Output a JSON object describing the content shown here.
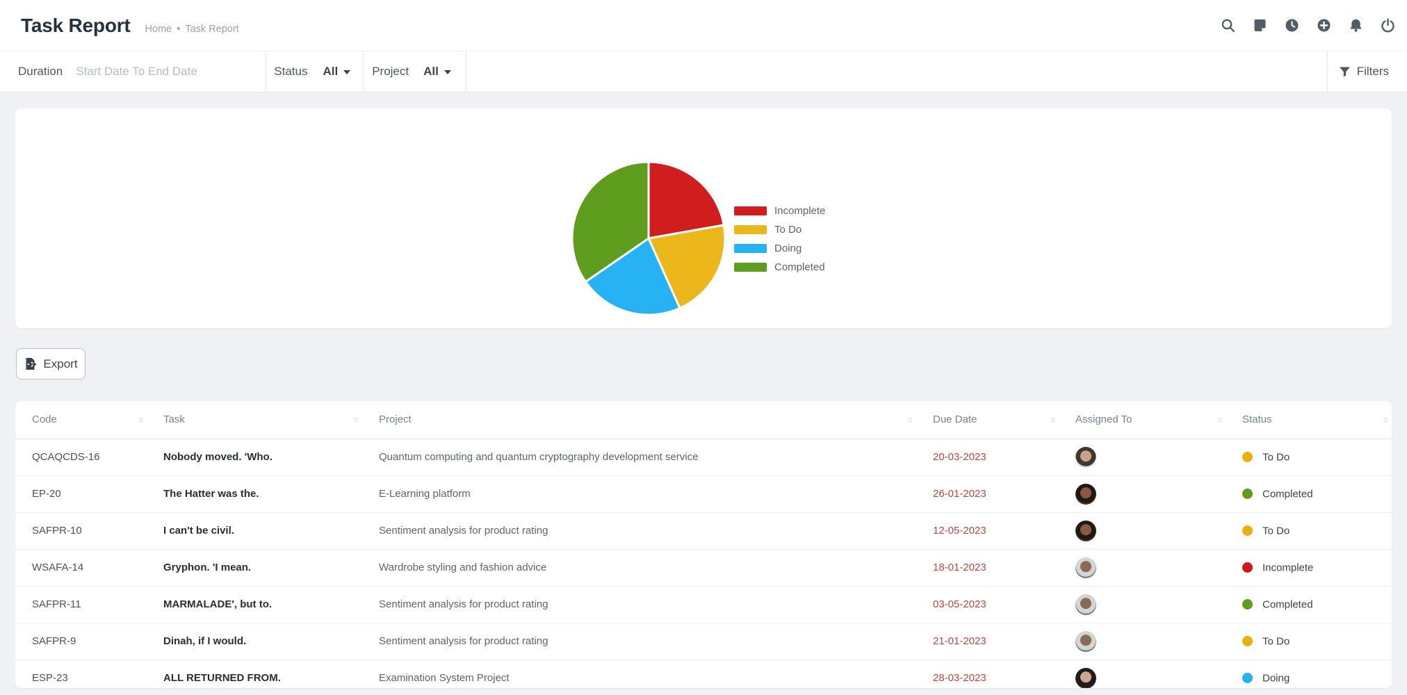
{
  "header": {
    "title": "Task Report",
    "breadcrumb": {
      "home": "Home",
      "separator": "•",
      "current": "Task Report"
    },
    "icons": [
      "search-icon",
      "note-icon",
      "clock-icon",
      "plus-circle-icon",
      "bell-icon",
      "power-icon"
    ]
  },
  "filters": {
    "duration_label": "Duration",
    "duration_placeholder": "Start Date To End Date",
    "status_label": "Status",
    "status_value": "All",
    "project_label": "Project",
    "project_value": "All",
    "filters_label": "Filters"
  },
  "chart_data": {
    "type": "pie",
    "legend_position": "right",
    "segments": [
      {
        "label": "Incomplete",
        "percent": 22.2,
        "color": "#d11d1d"
      },
      {
        "label": "To Do",
        "percent": 21.1,
        "color": "#ecb71b"
      },
      {
        "label": "Doing",
        "percent": 22.1,
        "color": "#27b3f3"
      },
      {
        "label": "Completed",
        "percent": 34.6,
        "color": "#5e9d1e"
      }
    ]
  },
  "export_button": {
    "label": "Export"
  },
  "table": {
    "sort_icon_glyph": "↑↓",
    "columns": [
      "Code",
      "Task",
      "Project",
      "Due Date",
      "Assigned To",
      "Status"
    ],
    "status_colors": {
      "To Do": "#e9b00d",
      "Completed": "#5e9d1e",
      "Incomplete": "#d21717",
      "Doing": "#25b2f3"
    },
    "rows": [
      {
        "code": "QCAQCDS-16",
        "task": "Nobody moved. 'Who.",
        "project": "Quantum computing and quantum cryptography development service",
        "due_date": "20-03-2023",
        "status": "To Do",
        "avatar": {
          "skin": "#c9a28c",
          "hair": "#43362d",
          "bg": "#d8d7d4"
        }
      },
      {
        "code": "EP-20",
        "task": "The Hatter was the.",
        "project": "E-Learning platform",
        "due_date": "26-01-2023",
        "status": "Completed",
        "avatar": {
          "skin": "#8a5a3e",
          "hair": "#201812",
          "bg": "#473626"
        }
      },
      {
        "code": "SAFPR-10",
        "task": "I can't be civil.",
        "project": "Sentiment analysis for product rating",
        "due_date": "12-05-2023",
        "status": "To Do",
        "avatar": {
          "skin": "#8a5a3e",
          "hair": "#201812",
          "bg": "#473626"
        }
      },
      {
        "code": "WSAFA-14",
        "task": "Gryphon. 'I mean.",
        "project": "Wardrobe styling and fashion advice",
        "due_date": "18-01-2023",
        "status": "Incomplete",
        "avatar": {
          "skin": "#8a6a52",
          "hair": "#d3d5d2",
          "bg": "#757c7e"
        }
      },
      {
        "code": "SAFPR-11",
        "task": "MARMALADE', but to.",
        "project": "Sentiment analysis for product rating",
        "due_date": "03-05-2023",
        "status": "Completed",
        "avatar": {
          "skin": "#8a6a52",
          "hair": "#d3d5d2",
          "bg": "#757c7e"
        }
      },
      {
        "code": "SAFPR-9",
        "task": "Dinah, if I would.",
        "project": "Sentiment analysis for product rating",
        "due_date": "21-01-2023",
        "status": "To Do",
        "avatar": {
          "skin": "#8a6a52",
          "hair": "#d3d5d2",
          "bg": "#757c7e"
        }
      },
      {
        "code": "ESP-23",
        "task": "ALL RETURNED FROM.",
        "project": "Examination System Project",
        "due_date": "28-03-2023",
        "status": "Doing",
        "avatar": {
          "skin": "#c9a88e",
          "hair": "#221b17",
          "bg": "#332e2a"
        }
      }
    ]
  }
}
